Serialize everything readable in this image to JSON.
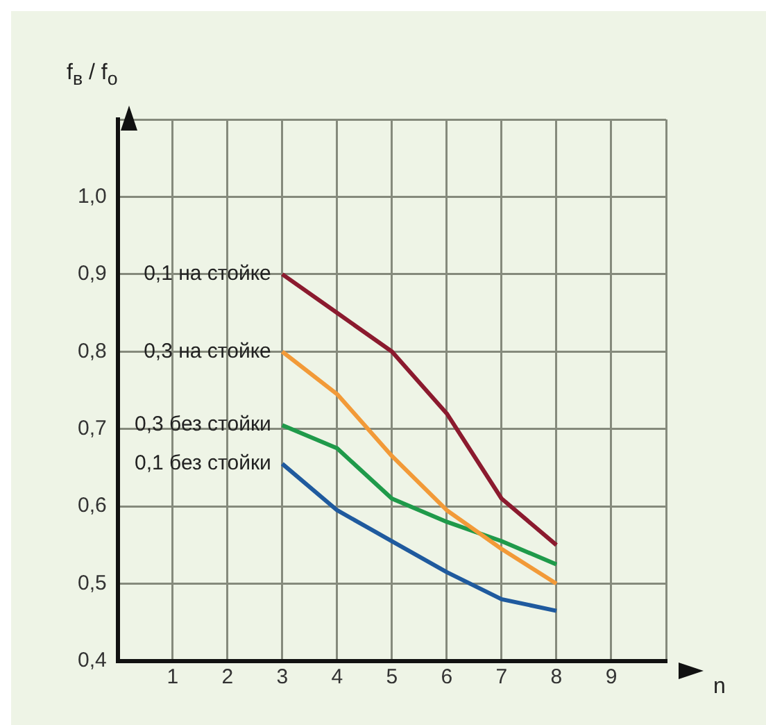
{
  "chart_data": {
    "type": "line",
    "xlabel": "n",
    "ylabel": "f$_{в}$ / f$_{о}$",
    "x": [
      3,
      4,
      5,
      6,
      7,
      8
    ],
    "series": [
      {
        "name": "0,1 на стойке",
        "color": "#8b1a2e",
        "values": [
          0.9,
          0.85,
          0.8,
          0.72,
          0.61,
          0.55
        ]
      },
      {
        "name": "0,3 на стойке",
        "color": "#f29a38",
        "values": [
          0.8,
          0.745,
          0.665,
          0.595,
          0.545,
          0.5
        ]
      },
      {
        "name": "0,3 без стойки",
        "color": "#1f9a4a",
        "values": [
          0.705,
          0.675,
          0.61,
          0.58,
          0.555,
          0.525
        ]
      },
      {
        "name": "0,1 без стойки",
        "color": "#1f5a9e",
        "values": [
          0.655,
          0.595,
          0.555,
          0.515,
          0.48,
          0.465
        ]
      }
    ],
    "xlim": [
      0,
      10
    ],
    "xticks": [
      1,
      2,
      3,
      4,
      5,
      6,
      7,
      8,
      9,
      {
        "value": 10,
        "label": null
      }
    ],
    "ylim": [
      0.4,
      1.1
    ],
    "yticks": [
      {
        "value": 0.4,
        "label": "0,4"
      },
      {
        "value": 0.5,
        "label": "0,5"
      },
      {
        "value": 0.6,
        "label": "0,6"
      },
      {
        "value": 0.7,
        "label": "0,7"
      },
      {
        "value": 0.8,
        "label": "0,8"
      },
      {
        "value": 0.9,
        "label": "0,9"
      },
      {
        "value": 1.0,
        "label": "1,0"
      },
      {
        "value": 1.1,
        "label": null
      }
    ],
    "grid": true,
    "legend": false,
    "marker": "none",
    "line_style": "solid"
  }
}
